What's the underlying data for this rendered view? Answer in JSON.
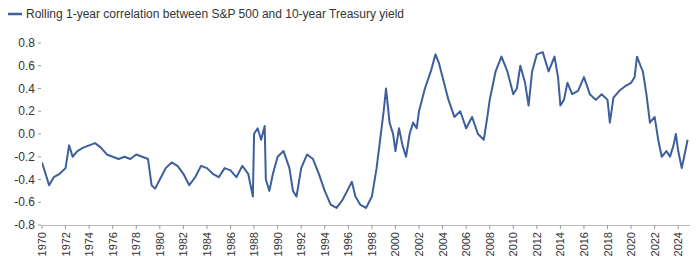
{
  "chart_data": {
    "type": "line",
    "x": [
      1970.0,
      1970.3,
      1970.6,
      1971.0,
      1971.5,
      1972.0,
      1972.3,
      1972.6,
      1973.0,
      1973.5,
      1974.0,
      1974.5,
      1975.0,
      1975.5,
      1976.0,
      1976.5,
      1977.0,
      1977.5,
      1978.0,
      1978.5,
      1979.0,
      1979.3,
      1979.6,
      1980.0,
      1980.5,
      1981.0,
      1981.5,
      1982.0,
      1982.5,
      1983.0,
      1983.5,
      1984.0,
      1984.5,
      1985.0,
      1985.5,
      1986.0,
      1986.5,
      1987.0,
      1987.5,
      1987.9,
      1988.0,
      1988.3,
      1988.6,
      1988.9,
      1989.0,
      1989.3,
      1989.6,
      1990.0,
      1990.5,
      1991.0,
      1991.3,
      1991.6,
      1992.0,
      1992.5,
      1993.0,
      1993.5,
      1994.0,
      1994.5,
      1995.0,
      1995.5,
      1996.0,
      1996.3,
      1996.6,
      1997.0,
      1997.5,
      1998.0,
      1998.4,
      1998.7,
      1999.0,
      1999.2,
      1999.5,
      1999.8,
      2000.0,
      2000.3,
      2000.6,
      2000.9,
      2001.2,
      2001.5,
      2001.8,
      2002.0,
      2002.5,
      2003.0,
      2003.4,
      2003.7,
      2004.0,
      2004.5,
      2005.0,
      2005.5,
      2006.0,
      2006.5,
      2007.0,
      2007.5,
      2007.8,
      2008.0,
      2008.5,
      2009.0,
      2009.5,
      2010.0,
      2010.3,
      2010.6,
      2011.0,
      2011.3,
      2011.6,
      2012.0,
      2012.5,
      2013.0,
      2013.5,
      2013.8,
      2014.0,
      2014.3,
      2014.6,
      2015.0,
      2015.5,
      2016.0,
      2016.5,
      2017.0,
      2017.5,
      2018.0,
      2018.2,
      2018.5,
      2019.0,
      2019.5,
      2020.0,
      2020.3,
      2020.5,
      2020.8,
      2021.0,
      2021.3,
      2021.6,
      2022.0,
      2022.3,
      2022.6,
      2023.0,
      2023.3,
      2023.6,
      2023.8,
      2024.0,
      2024.3,
      2024.5,
      2024.8
    ],
    "series": [
      {
        "name": "Rolling 1-year correlation between S&P 500 and 10-year Treasury yield",
        "color": "#3d5f9b",
        "values": [
          -0.25,
          -0.35,
          -0.45,
          -0.38,
          -0.35,
          -0.3,
          -0.1,
          -0.2,
          -0.15,
          -0.12,
          -0.1,
          -0.08,
          -0.12,
          -0.18,
          -0.2,
          -0.22,
          -0.2,
          -0.22,
          -0.18,
          -0.2,
          -0.22,
          -0.45,
          -0.48,
          -0.4,
          -0.3,
          -0.25,
          -0.28,
          -0.35,
          -0.45,
          -0.38,
          -0.28,
          -0.3,
          -0.35,
          -0.38,
          -0.3,
          -0.32,
          -0.38,
          -0.28,
          -0.35,
          -0.55,
          0.0,
          0.05,
          -0.05,
          0.07,
          -0.4,
          -0.5,
          -0.35,
          -0.2,
          -0.15,
          -0.3,
          -0.5,
          -0.55,
          -0.3,
          -0.18,
          -0.22,
          -0.35,
          -0.5,
          -0.62,
          -0.65,
          -0.58,
          -0.48,
          -0.42,
          -0.55,
          -0.62,
          -0.65,
          -0.55,
          -0.3,
          -0.05,
          0.2,
          0.4,
          0.1,
          0.0,
          -0.15,
          0.05,
          -0.1,
          -0.2,
          0.0,
          0.1,
          0.05,
          0.2,
          0.4,
          0.55,
          0.7,
          0.62,
          0.5,
          0.3,
          0.15,
          0.2,
          0.05,
          0.15,
          0.0,
          -0.05,
          0.15,
          0.3,
          0.55,
          0.68,
          0.55,
          0.35,
          0.4,
          0.6,
          0.45,
          0.25,
          0.55,
          0.7,
          0.72,
          0.55,
          0.68,
          0.5,
          0.25,
          0.3,
          0.45,
          0.35,
          0.38,
          0.5,
          0.35,
          0.3,
          0.35,
          0.3,
          0.1,
          0.32,
          0.38,
          0.42,
          0.45,
          0.5,
          0.68,
          0.6,
          0.55,
          0.35,
          0.1,
          0.15,
          -0.05,
          -0.2,
          -0.15,
          -0.2,
          -0.1,
          0.0,
          -0.15,
          -0.3,
          -0.2,
          -0.05
        ]
      }
    ],
    "xlim": [
      1970,
      2025
    ],
    "xticks": [
      1970,
      1972,
      1974,
      1976,
      1978,
      1980,
      1982,
      1984,
      1986,
      1988,
      1990,
      1992,
      1994,
      1996,
      1998,
      2000,
      2002,
      2004,
      2006,
      2008,
      2010,
      2012,
      2014,
      2016,
      2018,
      2020,
      2022,
      2024
    ],
    "ylim": [
      -0.8,
      0.8
    ],
    "yticks": [
      -0.8,
      -0.6,
      -0.4,
      -0.2,
      {
        "value": 0,
        "label": "0.0"
      },
      0.2,
      0.4,
      0.6,
      0.8
    ],
    "grid": false,
    "legend": "top-left"
  }
}
